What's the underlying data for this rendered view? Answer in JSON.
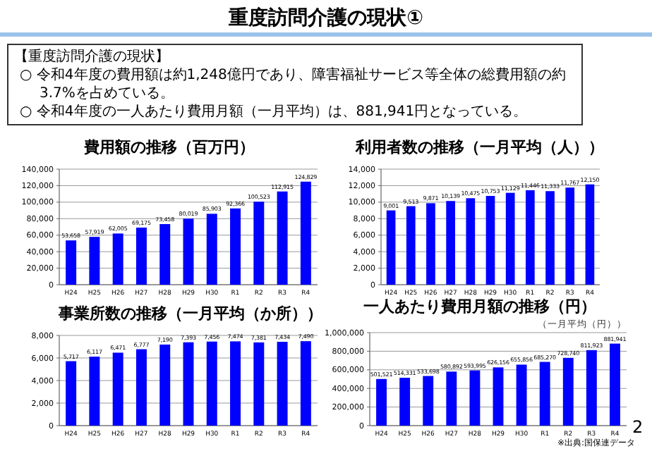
{
  "chart_data": [
    {
      "type": "other",
      "title": "重度訪問介護の現状①",
      "annotations": [
        "【重度訪問介護の現状】",
        "○ 令和4年度の費用額は約1,248億円であり、障害福祉サービス等全体の総費用額の約3.7%を占めている。",
        "○ 令和4年度の一人あたり費用月額（一月平均）は、881,941円となっている。",
        "2"
      ]
    },
    {
      "type": "bar",
      "title": "費用額の推移（百万円）",
      "categories": [
        "H24",
        "H25",
        "H26",
        "H27",
        "H28",
        "H29",
        "H30",
        "R1",
        "R2",
        "R3",
        "R4"
      ],
      "values": [
        53658,
        57919,
        62005,
        69175,
        73458,
        80019,
        85903,
        92366,
        100523,
        112915,
        124829
      ],
      "value_labels": [
        "53,658",
        "57,919",
        "62,005",
        "69,175",
        "73,458",
        "80,019",
        "85,903",
        "92,366",
        "100,523",
        "112,915",
        "124,829"
      ],
      "color": "#0000ff",
      "ylim": [
        0,
        140000
      ],
      "yticks": [
        {
          "value": 0,
          "label": "0"
        },
        {
          "value": 20000,
          "label": "20,000"
        },
        {
          "value": 40000,
          "label": "40,000"
        },
        {
          "value": 60000,
          "label": "60,000"
        },
        {
          "value": 80000,
          "label": "80,000"
        },
        {
          "value": 100000,
          "label": "100,000"
        },
        {
          "value": 120000,
          "label": "120,000"
        },
        {
          "value": 140000,
          "label": "140,000"
        }
      ],
      "grid": "y"
    },
    {
      "type": "bar",
      "title": "利用者数の推移（一月平均（人））",
      "categories": [
        "H24",
        "H25",
        "H26",
        "H27",
        "H28",
        "H29",
        "H30",
        "R1",
        "R2",
        "R3",
        "R4"
      ],
      "values": [
        9001,
        9513,
        9871,
        10139,
        10475,
        10753,
        11129,
        11446,
        11333,
        11767,
        12150
      ],
      "value_labels": [
        "9,001",
        "9,513",
        "9,871",
        "10,139",
        "10,475",
        "10,753",
        "11,129",
        "11,446",
        "11,333",
        "11,767",
        "12,150"
      ],
      "color": "#0000ff",
      "ylim": [
        0,
        14000
      ],
      "yticks": [
        {
          "value": 0,
          "label": "0"
        },
        {
          "value": 2000,
          "label": "2,000"
        },
        {
          "value": 4000,
          "label": "4,000"
        },
        {
          "value": 6000,
          "label": "6,000"
        },
        {
          "value": 8000,
          "label": "8,000"
        },
        {
          "value": 10000,
          "label": "10,000"
        },
        {
          "value": 12000,
          "label": "12,000"
        },
        {
          "value": 14000,
          "label": "14,000"
        }
      ],
      "grid": "y"
    },
    {
      "type": "bar",
      "title": "事業所数の推移（一月平均（か所））",
      "categories": [
        "H24",
        "H25",
        "H26",
        "H27",
        "H28",
        "H29",
        "H30",
        "R1",
        "R2",
        "R3",
        "R4"
      ],
      "values": [
        5717,
        6117,
        6471,
        6777,
        7190,
        7393,
        7456,
        7474,
        7381,
        7434,
        7490
      ],
      "value_labels": [
        "5,717",
        "6,117",
        "6,471",
        "6,777",
        "7,190",
        "7,393",
        "7,456",
        "7,474",
        "7,381",
        "7,434",
        "7,490"
      ],
      "color": "#0000ff",
      "ylim": [
        0,
        8000
      ],
      "yticks": [
        {
          "value": 0,
          "label": "0"
        },
        {
          "value": 2000,
          "label": "2,000"
        },
        {
          "value": 4000,
          "label": "4,000"
        },
        {
          "value": 6000,
          "label": "6,000"
        },
        {
          "value": 8000,
          "label": "8,000"
        }
      ],
      "grid": "y"
    },
    {
      "type": "bar",
      "title": "一人あたり費用月額の推移（円）",
      "subtitle": "（一月平均（円））",
      "categories": [
        "H24",
        "H25",
        "H26",
        "H27",
        "H28",
        "H29",
        "H30",
        "R1",
        "R2",
        "R3",
        "R4"
      ],
      "values": [
        501521,
        514331,
        533698,
        580892,
        593995,
        626156,
        655856,
        685270,
        728740,
        811923,
        881941
      ],
      "value_labels": [
        "501,521",
        "514,331",
        "533,698",
        "580,892",
        "593,995",
        "626,156",
        "655,856",
        "685,270",
        "728,740",
        "811,923",
        "881,941"
      ],
      "color": "#0000ff",
      "ylim": [
        0,
        1000000
      ],
      "yticks": [
        {
          "value": 0,
          "label": "0"
        },
        {
          "value": 200000,
          "label": "200,000"
        },
        {
          "value": 400000,
          "label": "400,000"
        },
        {
          "value": 600000,
          "label": "600,000"
        },
        {
          "value": 800000,
          "label": "800,000"
        },
        {
          "value": 1000000,
          "label": "1,000,000"
        }
      ],
      "grid": "y",
      "annotations": [
        "※出典:国保連データ"
      ]
    }
  ]
}
